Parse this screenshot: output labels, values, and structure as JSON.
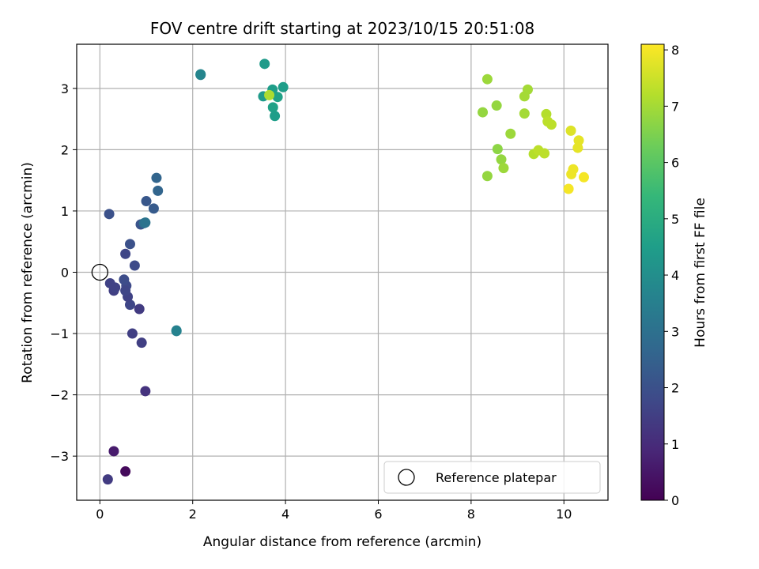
{
  "chart_data": {
    "type": "scatter",
    "title": "FOV centre drift starting at 2023/10/15 20:51:08",
    "xlabel": "Angular distance from reference (arcmin)",
    "ylabel": "Rotation from reference (arcmin)",
    "xlim": [
      -0.5,
      10.95
    ],
    "ylim": [
      -3.72,
      3.72
    ],
    "xticks": [
      0,
      2,
      4,
      6,
      8,
      10
    ],
    "yticks": [
      -3,
      -2,
      -1,
      0,
      1,
      2,
      3
    ],
    "grid": true,
    "colorbar": {
      "label": "Hours from first FF file",
      "colormap": "viridis",
      "range": [
        0,
        8.1
      ],
      "ticks": [
        0,
        1,
        2,
        3,
        4,
        5,
        6,
        7,
        8
      ]
    },
    "legend": {
      "position": "lower-right",
      "entries": [
        {
          "label": "Reference platepar",
          "marker": "open-circle"
        }
      ]
    },
    "reference_point": {
      "x": 0,
      "y": 0
    },
    "points": [
      {
        "x": 0.55,
        "y": -3.25,
        "c": 0.2
      },
      {
        "x": 0.3,
        "y": -2.92,
        "c": 0.6
      },
      {
        "x": 0.17,
        "y": -3.38,
        "c": 1.4
      },
      {
        "x": 0.98,
        "y": -1.94,
        "c": 1.2
      },
      {
        "x": 0.9,
        "y": -1.15,
        "c": 1.5
      },
      {
        "x": 0.7,
        "y": -1.0,
        "c": 1.5
      },
      {
        "x": 0.85,
        "y": -0.6,
        "c": 1.4
      },
      {
        "x": 0.65,
        "y": -0.53,
        "c": 1.7
      },
      {
        "x": 0.6,
        "y": -0.4,
        "c": 1.6
      },
      {
        "x": 0.57,
        "y": -0.22,
        "c": 1.8
      },
      {
        "x": 0.52,
        "y": -0.12,
        "c": 1.9
      },
      {
        "x": 0.55,
        "y": -0.3,
        "c": 1.7
      },
      {
        "x": 0.3,
        "y": -0.3,
        "c": 1.5
      },
      {
        "x": 0.33,
        "y": -0.25,
        "c": 1.6
      },
      {
        "x": 0.22,
        "y": -0.18,
        "c": 1.6
      },
      {
        "x": 0.55,
        "y": 0.3,
        "c": 1.7
      },
      {
        "x": 0.75,
        "y": 0.11,
        "c": 1.8
      },
      {
        "x": 0.65,
        "y": 0.46,
        "c": 2.0
      },
      {
        "x": 0.2,
        "y": 0.95,
        "c": 2.0
      },
      {
        "x": 0.88,
        "y": 0.78,
        "c": 2.1
      },
      {
        "x": 0.95,
        "y": 0.8,
        "c": 2.9
      },
      {
        "x": 0.98,
        "y": 0.81,
        "c": 3.1
      },
      {
        "x": 1.0,
        "y": 1.16,
        "c": 2.2
      },
      {
        "x": 1.16,
        "y": 1.04,
        "c": 2.3
      },
      {
        "x": 1.25,
        "y": 1.33,
        "c": 2.6
      },
      {
        "x": 1.22,
        "y": 1.54,
        "c": 2.6
      },
      {
        "x": 1.65,
        "y": -0.95,
        "c": 3.4
      },
      {
        "x": 1.65,
        "y": -0.96,
        "c": 3.6
      },
      {
        "x": 2.17,
        "y": 3.22,
        "c": 3.6
      },
      {
        "x": 2.17,
        "y": 3.23,
        "c": 3.7
      },
      {
        "x": 3.55,
        "y": 3.4,
        "c": 4.4
      },
      {
        "x": 3.52,
        "y": 2.87,
        "c": 4.4
      },
      {
        "x": 3.72,
        "y": 2.98,
        "c": 4.5
      },
      {
        "x": 3.95,
        "y": 3.02,
        "c": 4.5
      },
      {
        "x": 3.83,
        "y": 2.86,
        "c": 4.6
      },
      {
        "x": 3.73,
        "y": 2.69,
        "c": 4.6
      },
      {
        "x": 3.77,
        "y": 2.55,
        "c": 4.5
      },
      {
        "x": 3.65,
        "y": 2.89,
        "c": 7.1
      },
      {
        "x": 8.35,
        "y": 3.15,
        "c": 6.9
      },
      {
        "x": 8.55,
        "y": 2.72,
        "c": 6.8
      },
      {
        "x": 8.25,
        "y": 2.61,
        "c": 6.8
      },
      {
        "x": 9.22,
        "y": 2.98,
        "c": 7.0
      },
      {
        "x": 9.15,
        "y": 2.87,
        "c": 7.0
      },
      {
        "x": 9.15,
        "y": 2.59,
        "c": 7.0
      },
      {
        "x": 8.85,
        "y": 2.26,
        "c": 6.9
      },
      {
        "x": 8.57,
        "y": 2.01,
        "c": 6.7
      },
      {
        "x": 8.65,
        "y": 1.84,
        "c": 6.8
      },
      {
        "x": 8.7,
        "y": 1.7,
        "c": 6.9
      },
      {
        "x": 8.35,
        "y": 1.57,
        "c": 6.8
      },
      {
        "x": 9.62,
        "y": 2.58,
        "c": 7.2
      },
      {
        "x": 9.65,
        "y": 2.46,
        "c": 7.3
      },
      {
        "x": 9.73,
        "y": 2.41,
        "c": 7.3
      },
      {
        "x": 9.35,
        "y": 1.93,
        "c": 7.2
      },
      {
        "x": 9.45,
        "y": 1.99,
        "c": 7.3
      },
      {
        "x": 9.58,
        "y": 1.94,
        "c": 7.3
      },
      {
        "x": 10.15,
        "y": 2.31,
        "c": 7.7
      },
      {
        "x": 10.32,
        "y": 2.15,
        "c": 7.8
      },
      {
        "x": 10.3,
        "y": 2.03,
        "c": 7.8
      },
      {
        "x": 10.2,
        "y": 1.68,
        "c": 7.9
      },
      {
        "x": 10.16,
        "y": 1.6,
        "c": 7.9
      },
      {
        "x": 10.43,
        "y": 1.55,
        "c": 8.0
      },
      {
        "x": 10.1,
        "y": 1.36,
        "c": 8.0
      }
    ]
  }
}
